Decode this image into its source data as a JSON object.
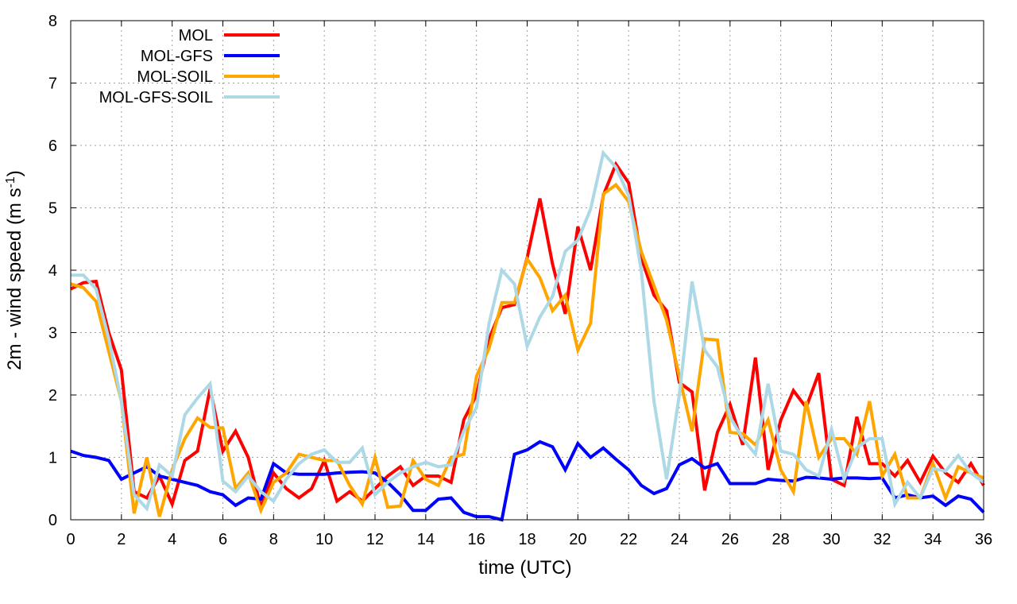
{
  "chart_data": {
    "type": "line",
    "title": "",
    "xlabel": "time (UTC)",
    "ylabel_main": "2m - wind speed  (m s",
    "ylabel_sup": "-1",
    "ylabel_tail": ")",
    "xlim": [
      0,
      36
    ],
    "ylim": [
      0,
      8
    ],
    "xticks": [
      0,
      2,
      4,
      6,
      8,
      10,
      12,
      14,
      16,
      18,
      20,
      22,
      24,
      26,
      28,
      30,
      32,
      34,
      36
    ],
    "yticks": [
      0,
      1,
      2,
      3,
      4,
      5,
      6,
      7,
      8
    ],
    "grid": true,
    "legend_position": "top-left",
    "series": [
      {
        "name": "MOL",
        "color": "#ff0000",
        "points": [
          [
            0,
            3.7
          ],
          [
            0.5,
            3.8
          ],
          [
            1,
            3.82
          ],
          [
            1.5,
            3.0
          ],
          [
            2,
            2.4
          ],
          [
            2.5,
            0.45
          ],
          [
            3,
            0.35
          ],
          [
            3.5,
            0.7
          ],
          [
            4,
            0.25
          ],
          [
            4.5,
            0.95
          ],
          [
            5,
            1.1
          ],
          [
            5.5,
            2.1
          ],
          [
            6,
            1.1
          ],
          [
            6.5,
            1.42
          ],
          [
            7,
            1.0
          ],
          [
            7.5,
            0.2
          ],
          [
            8,
            0.75
          ],
          [
            8.5,
            0.5
          ],
          [
            9,
            0.35
          ],
          [
            9.5,
            0.5
          ],
          [
            10,
            0.95
          ],
          [
            10.5,
            0.3
          ],
          [
            11,
            0.45
          ],
          [
            11.5,
            0.3
          ],
          [
            12,
            0.5
          ],
          [
            12.5,
            0.7
          ],
          [
            13,
            0.85
          ],
          [
            13.5,
            0.55
          ],
          [
            14,
            0.7
          ],
          [
            14.5,
            0.7
          ],
          [
            15,
            0.6
          ],
          [
            15.5,
            1.6
          ],
          [
            16,
            2.0
          ],
          [
            16.5,
            2.9
          ],
          [
            17,
            3.4
          ],
          [
            17.5,
            3.45
          ],
          [
            18,
            4.2
          ],
          [
            18.5,
            5.15
          ],
          [
            19,
            4.1
          ],
          [
            19.5,
            3.3
          ],
          [
            20,
            4.7
          ],
          [
            20.5,
            4.0
          ],
          [
            21,
            5.2
          ],
          [
            21.5,
            5.7
          ],
          [
            22,
            5.4
          ],
          [
            22.5,
            4.2
          ],
          [
            23,
            3.6
          ],
          [
            23.5,
            3.35
          ],
          [
            24,
            2.2
          ],
          [
            24.5,
            2.05
          ],
          [
            25,
            0.47
          ],
          [
            25.5,
            1.4
          ],
          [
            26,
            1.85
          ],
          [
            26.5,
            1.2
          ],
          [
            27,
            2.6
          ],
          [
            27.5,
            0.8
          ],
          [
            28,
            1.6
          ],
          [
            28.5,
            2.07
          ],
          [
            29,
            1.8
          ],
          [
            29.5,
            2.35
          ],
          [
            30,
            0.65
          ],
          [
            30.5,
            0.55
          ],
          [
            31,
            1.65
          ],
          [
            31.5,
            0.9
          ],
          [
            32,
            0.9
          ],
          [
            32.5,
            0.7
          ],
          [
            33,
            0.95
          ],
          [
            33.5,
            0.6
          ],
          [
            34,
            1.02
          ],
          [
            34.5,
            0.75
          ],
          [
            35,
            0.6
          ],
          [
            35.5,
            0.9
          ],
          [
            36,
            0.55
          ]
        ]
      },
      {
        "name": "MOL-GFS",
        "color": "#0000ff",
        "points": [
          [
            0,
            1.1
          ],
          [
            0.5,
            1.03
          ],
          [
            1,
            1.0
          ],
          [
            1.5,
            0.95
          ],
          [
            2,
            0.65
          ],
          [
            2.5,
            0.75
          ],
          [
            3,
            0.85
          ],
          [
            3.5,
            0.7
          ],
          [
            4,
            0.65
          ],
          [
            4.5,
            0.6
          ],
          [
            5,
            0.55
          ],
          [
            5.5,
            0.45
          ],
          [
            6,
            0.4
          ],
          [
            6.5,
            0.23
          ],
          [
            7,
            0.35
          ],
          [
            7.5,
            0.33
          ],
          [
            8,
            0.9
          ],
          [
            8.5,
            0.75
          ],
          [
            9,
            0.73
          ],
          [
            9.5,
            0.73
          ],
          [
            10,
            0.73
          ],
          [
            10.5,
            0.75
          ],
          [
            11,
            0.76
          ],
          [
            11.5,
            0.77
          ],
          [
            12,
            0.75
          ],
          [
            12.5,
            0.6
          ],
          [
            13,
            0.4
          ],
          [
            13.5,
            0.15
          ],
          [
            14,
            0.15
          ],
          [
            14.5,
            0.33
          ],
          [
            15,
            0.35
          ],
          [
            15.5,
            0.12
          ],
          [
            16,
            0.05
          ],
          [
            16.5,
            0.05
          ],
          [
            17,
            0.0
          ],
          [
            17.5,
            1.05
          ],
          [
            18,
            1.12
          ],
          [
            18.5,
            1.25
          ],
          [
            19,
            1.17
          ],
          [
            19.5,
            0.8
          ],
          [
            20,
            1.22
          ],
          [
            20.5,
            1.0
          ],
          [
            21,
            1.15
          ],
          [
            21.5,
            0.97
          ],
          [
            22,
            0.8
          ],
          [
            22.5,
            0.55
          ],
          [
            23,
            0.42
          ],
          [
            23.5,
            0.5
          ],
          [
            24,
            0.88
          ],
          [
            24.5,
            0.98
          ],
          [
            25,
            0.83
          ],
          [
            25.5,
            0.9
          ],
          [
            26,
            0.58
          ],
          [
            26.5,
            0.58
          ],
          [
            27,
            0.58
          ],
          [
            27.5,
            0.65
          ],
          [
            28,
            0.63
          ],
          [
            28.5,
            0.62
          ],
          [
            29,
            0.68
          ],
          [
            29.5,
            0.67
          ],
          [
            30,
            0.65
          ],
          [
            30.5,
            0.67
          ],
          [
            31,
            0.67
          ],
          [
            31.5,
            0.66
          ],
          [
            32,
            0.67
          ],
          [
            32.5,
            0.35
          ],
          [
            33,
            0.4
          ],
          [
            33.5,
            0.35
          ],
          [
            34,
            0.38
          ],
          [
            34.5,
            0.23
          ],
          [
            35,
            0.38
          ],
          [
            35.5,
            0.33
          ],
          [
            36,
            0.12
          ]
        ]
      },
      {
        "name": "MOL-SOIL",
        "color": "#ffa500",
        "points": [
          [
            0,
            3.78
          ],
          [
            0.5,
            3.72
          ],
          [
            1,
            3.5
          ],
          [
            1.5,
            2.7
          ],
          [
            2,
            1.9
          ],
          [
            2.5,
            0.1
          ],
          [
            3,
            1.0
          ],
          [
            3.5,
            0.05
          ],
          [
            4,
            0.8
          ],
          [
            4.5,
            1.3
          ],
          [
            5,
            1.63
          ],
          [
            5.5,
            1.48
          ],
          [
            6,
            1.47
          ],
          [
            6.5,
            0.5
          ],
          [
            7,
            0.75
          ],
          [
            7.5,
            0.15
          ],
          [
            8,
            0.6
          ],
          [
            8.5,
            0.75
          ],
          [
            9,
            1.05
          ],
          [
            9.5,
            1.0
          ],
          [
            10,
            0.95
          ],
          [
            10.5,
            0.95
          ],
          [
            11,
            0.55
          ],
          [
            11.5,
            0.25
          ],
          [
            12,
            1.0
          ],
          [
            12.5,
            0.2
          ],
          [
            13,
            0.22
          ],
          [
            13.5,
            0.95
          ],
          [
            14,
            0.65
          ],
          [
            14.5,
            0.55
          ],
          [
            15,
            1.0
          ],
          [
            15.5,
            1.05
          ],
          [
            16,
            2.3
          ],
          [
            16.5,
            2.75
          ],
          [
            17,
            3.48
          ],
          [
            17.5,
            3.48
          ],
          [
            18,
            4.18
          ],
          [
            18.5,
            3.88
          ],
          [
            19,
            3.35
          ],
          [
            19.5,
            3.6
          ],
          [
            20,
            2.72
          ],
          [
            20.5,
            3.15
          ],
          [
            21,
            5.22
          ],
          [
            21.5,
            5.37
          ],
          [
            22,
            5.1
          ],
          [
            22.5,
            4.3
          ],
          [
            23,
            3.75
          ],
          [
            23.5,
            3.2
          ],
          [
            24,
            2.3
          ],
          [
            24.5,
            1.42
          ],
          [
            25,
            2.9
          ],
          [
            25.5,
            2.88
          ],
          [
            26,
            1.4
          ],
          [
            26.5,
            1.38
          ],
          [
            27,
            1.2
          ],
          [
            27.5,
            1.6
          ],
          [
            28,
            0.8
          ],
          [
            28.5,
            0.45
          ],
          [
            29,
            1.9
          ],
          [
            29.5,
            1.0
          ],
          [
            30,
            1.3
          ],
          [
            30.5,
            1.3
          ],
          [
            31,
            1.05
          ],
          [
            31.5,
            1.9
          ],
          [
            32,
            0.7
          ],
          [
            32.5,
            1.05
          ],
          [
            33,
            0.35
          ],
          [
            33.5,
            0.35
          ],
          [
            34,
            0.9
          ],
          [
            34.5,
            0.35
          ],
          [
            35,
            0.85
          ],
          [
            35.5,
            0.75
          ],
          [
            36,
            0.67
          ]
        ]
      },
      {
        "name": "MOL-GFS-SOIL",
        "color": "#add8e6",
        "points": [
          [
            0,
            3.92
          ],
          [
            0.5,
            3.92
          ],
          [
            1,
            3.7
          ],
          [
            1.5,
            2.9
          ],
          [
            2,
            1.9
          ],
          [
            2.5,
            0.4
          ],
          [
            3,
            0.18
          ],
          [
            3.5,
            0.88
          ],
          [
            4,
            0.7
          ],
          [
            4.5,
            1.68
          ],
          [
            5,
            1.95
          ],
          [
            5.5,
            2.18
          ],
          [
            6,
            0.62
          ],
          [
            6.5,
            0.45
          ],
          [
            7,
            0.7
          ],
          [
            7.5,
            0.45
          ],
          [
            8,
            0.3
          ],
          [
            8.5,
            0.65
          ],
          [
            9,
            0.9
          ],
          [
            9.5,
            1.05
          ],
          [
            10,
            1.12
          ],
          [
            10.5,
            0.92
          ],
          [
            11,
            0.92
          ],
          [
            11.5,
            1.15
          ],
          [
            12,
            0.4
          ],
          [
            12.5,
            0.6
          ],
          [
            13,
            0.75
          ],
          [
            13.5,
            0.85
          ],
          [
            14,
            0.92
          ],
          [
            14.5,
            0.85
          ],
          [
            15,
            0.88
          ],
          [
            15.5,
            1.42
          ],
          [
            16,
            1.8
          ],
          [
            16.5,
            3.15
          ],
          [
            17,
            4.0
          ],
          [
            17.5,
            3.78
          ],
          [
            18,
            2.78
          ],
          [
            18.5,
            3.25
          ],
          [
            19,
            3.58
          ],
          [
            19.5,
            4.3
          ],
          [
            20,
            4.48
          ],
          [
            20.5,
            4.98
          ],
          [
            21,
            5.88
          ],
          [
            21.5,
            5.65
          ],
          [
            22,
            5.2
          ],
          [
            22.5,
            4.0
          ],
          [
            23,
            1.9
          ],
          [
            23.5,
            0.65
          ],
          [
            24,
            2.0
          ],
          [
            24.5,
            3.82
          ],
          [
            25,
            2.72
          ],
          [
            25.5,
            2.45
          ],
          [
            26,
            1.65
          ],
          [
            26.5,
            1.3
          ],
          [
            27,
            1.05
          ],
          [
            27.5,
            2.18
          ],
          [
            28,
            1.1
          ],
          [
            28.5,
            1.05
          ],
          [
            29,
            0.8
          ],
          [
            29.5,
            0.7
          ],
          [
            30,
            1.45
          ],
          [
            30.5,
            0.65
          ],
          [
            31,
            1.15
          ],
          [
            31.5,
            1.3
          ],
          [
            32,
            1.3
          ],
          [
            32.5,
            0.25
          ],
          [
            33,
            0.6
          ],
          [
            33.5,
            0.35
          ],
          [
            34,
            0.82
          ],
          [
            34.5,
            0.78
          ],
          [
            35,
            1.03
          ],
          [
            35.5,
            0.75
          ],
          [
            36,
            0.6
          ]
        ]
      }
    ]
  }
}
